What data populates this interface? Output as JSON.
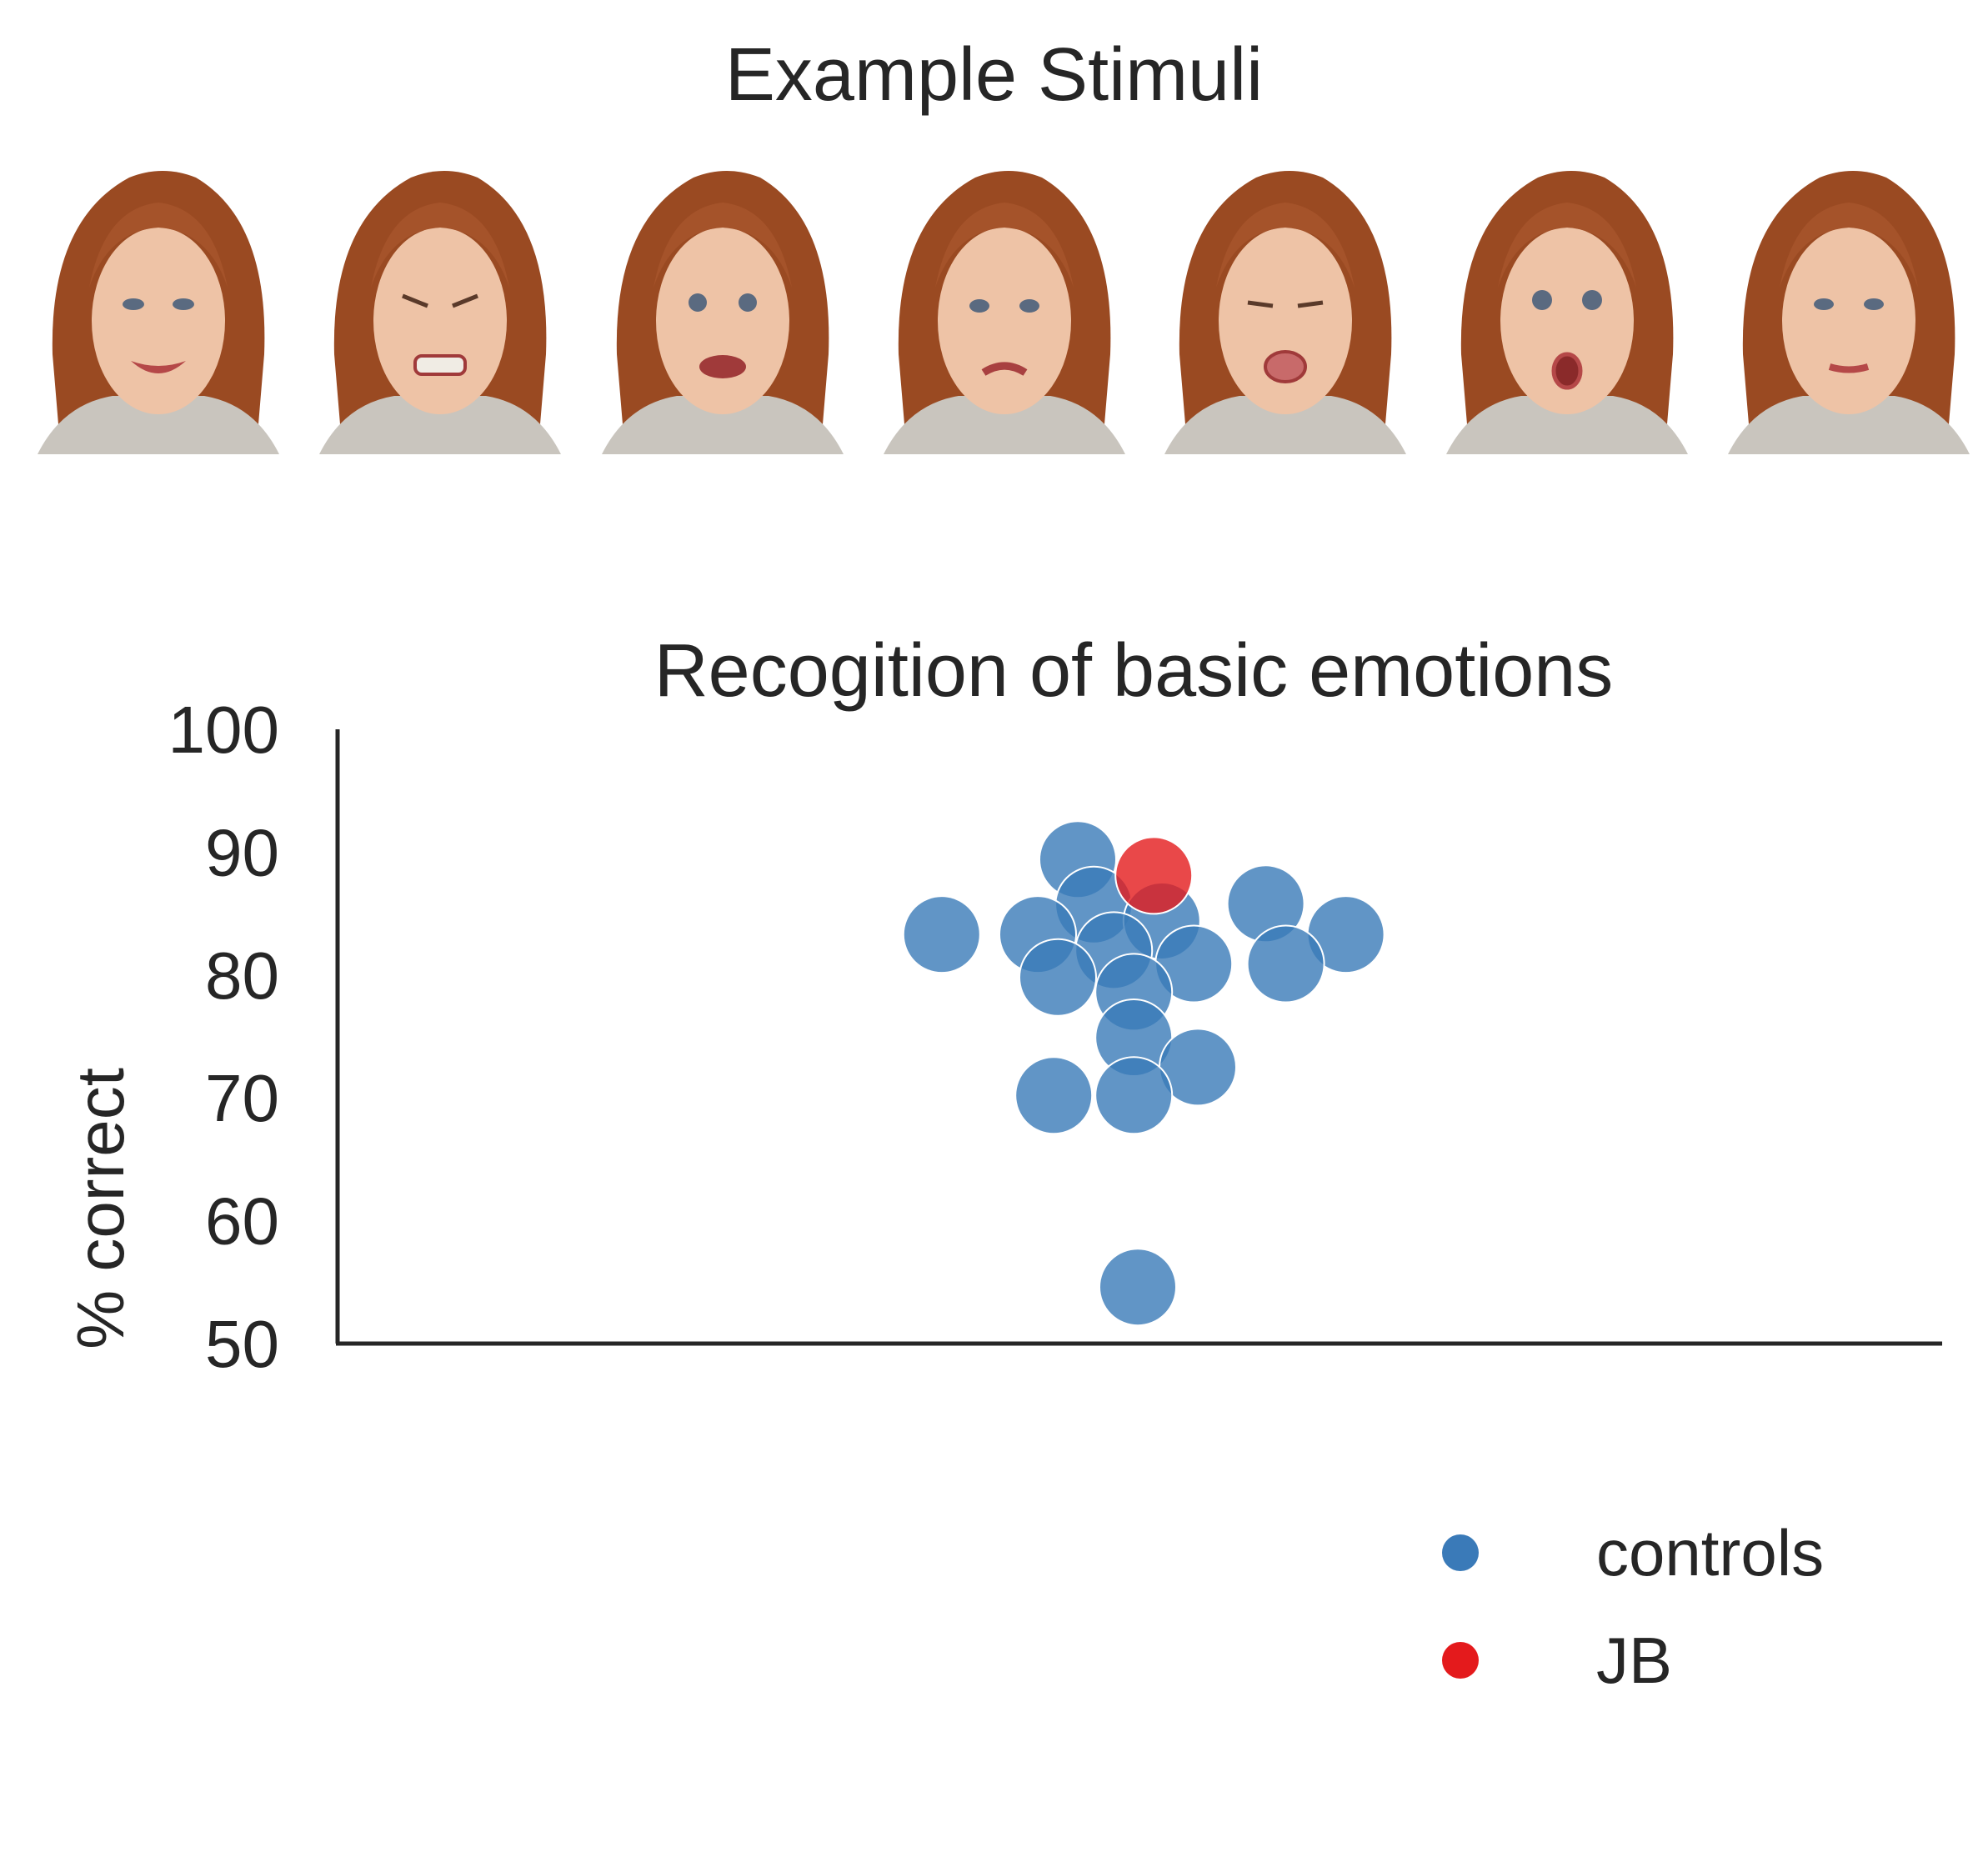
{
  "stimuli": {
    "title": "Example Stimuli",
    "faces": [
      {
        "expression": "happy"
      },
      {
        "expression": "angry"
      },
      {
        "expression": "fearful"
      },
      {
        "expression": "sad"
      },
      {
        "expression": "disgusted"
      },
      {
        "expression": "surprised"
      },
      {
        "expression": "neutral"
      }
    ]
  },
  "colors": {
    "controls": "#3a7ab8",
    "jb": "#e41a1c",
    "axis": "#262626",
    "text": "#262626"
  },
  "chart_data": {
    "type": "scatter",
    "title": "Recogition of basic emotions",
    "ylabel": "% correct",
    "xlabel": "",
    "ylim": [
      50,
      100
    ],
    "yticks": [
      50,
      60,
      70,
      80,
      90,
      100
    ],
    "grid": false,
    "legend_placement": "bottom-right",
    "series": [
      {
        "name": "controls",
        "color": "#3a7ab8",
        "points": [
          {
            "x": -0.15,
            "y": 89.4
          },
          {
            "x": -0.11,
            "y": 85.7
          },
          {
            "x": 0.06,
            "y": 84.4
          },
          {
            "x": 0.32,
            "y": 85.8
          },
          {
            "x": -0.49,
            "y": 83.3
          },
          {
            "x": -0.25,
            "y": 83.3
          },
          {
            "x": 0.52,
            "y": 83.3
          },
          {
            "x": -0.06,
            "y": 82.0
          },
          {
            "x": 0.14,
            "y": 80.9
          },
          {
            "x": 0.37,
            "y": 80.9
          },
          {
            "x": -0.2,
            "y": 79.8
          },
          {
            "x": -0.01,
            "y": 78.6
          },
          {
            "x": -0.01,
            "y": 74.9
          },
          {
            "x": 0.15,
            "y": 72.5
          },
          {
            "x": -0.21,
            "y": 70.2
          },
          {
            "x": -0.01,
            "y": 70.2
          },
          {
            "x": 0.0,
            "y": 54.6
          }
        ]
      },
      {
        "name": "JB",
        "color": "#e41a1c",
        "points": [
          {
            "x": 0.04,
            "y": 88.1
          }
        ]
      }
    ]
  }
}
